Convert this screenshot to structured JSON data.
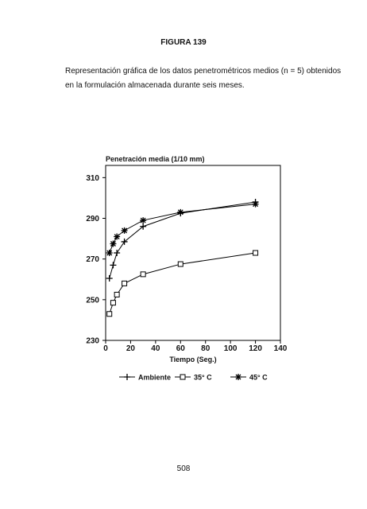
{
  "header": {
    "title": "FIGURA 139"
  },
  "caption": {
    "lines": [
      "Representación gráfica de los datos penetrométricos medios (n = 5) obtenidos",
      "en la formulación almacenada durante seis meses."
    ]
  },
  "chart_data": {
    "type": "line",
    "y_label": "Penetración media (1/10 mm)",
    "x_label": "Tiempo (Seg.)",
    "x": [
      3,
      6,
      9,
      15,
      30,
      60,
      120
    ],
    "series": [
      {
        "name": "Ambiente",
        "color": "#000",
        "marker": "plus",
        "values": [
          260.5,
          267,
          273,
          278.5,
          286,
          292.5,
          298
        ]
      },
      {
        "name": "35° C",
        "color": "#000",
        "marker": "square",
        "values": [
          243,
          248.5,
          252.5,
          258,
          262.5,
          267.5,
          273
        ]
      },
      {
        "name": "45° C",
        "color": "#000",
        "marker": "asterisk",
        "values": [
          273,
          277.5,
          281,
          284,
          289,
          293,
          297
        ]
      }
    ],
    "xlim": [
      0,
      140
    ],
    "xticks": [
      0,
      20,
      40,
      60,
      80,
      100,
      120,
      140
    ],
    "ylim": [
      230,
      316
    ],
    "yticks": [
      230,
      250,
      270,
      290,
      310
    ]
  },
  "footer": {
    "page_number": "508"
  }
}
